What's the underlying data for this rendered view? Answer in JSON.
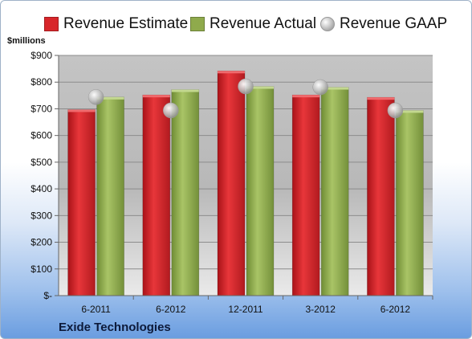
{
  "chart_data": {
    "type": "bar",
    "title": "",
    "units_label": "$millions",
    "company": "Exide Technologies",
    "categories": [
      "6-2011",
      "6-2012",
      "12-2011",
      "3-2012",
      "6-2012"
    ],
    "series": [
      {
        "name": "Revenue Estimate",
        "kind": "bar",
        "color": "#e0262c",
        "values": [
          697,
          752,
          842,
          752,
          743
        ]
      },
      {
        "name": "Revenue Actual",
        "kind": "bar",
        "color": "#96b255",
        "values": [
          744,
          772,
          784,
          781,
          694
        ]
      },
      {
        "name": "Revenue GAAP",
        "kind": "point",
        "color": "#bfbfbf",
        "values": [
          744,
          694,
          784,
          781,
          694
        ]
      }
    ],
    "y_ticks": [
      "$-",
      "$100",
      "$200",
      "$300",
      "$400",
      "$500",
      "$600",
      "$700",
      "$800",
      "$900"
    ],
    "ylim": [
      0,
      900
    ],
    "grid": true,
    "legend_position": "top"
  }
}
